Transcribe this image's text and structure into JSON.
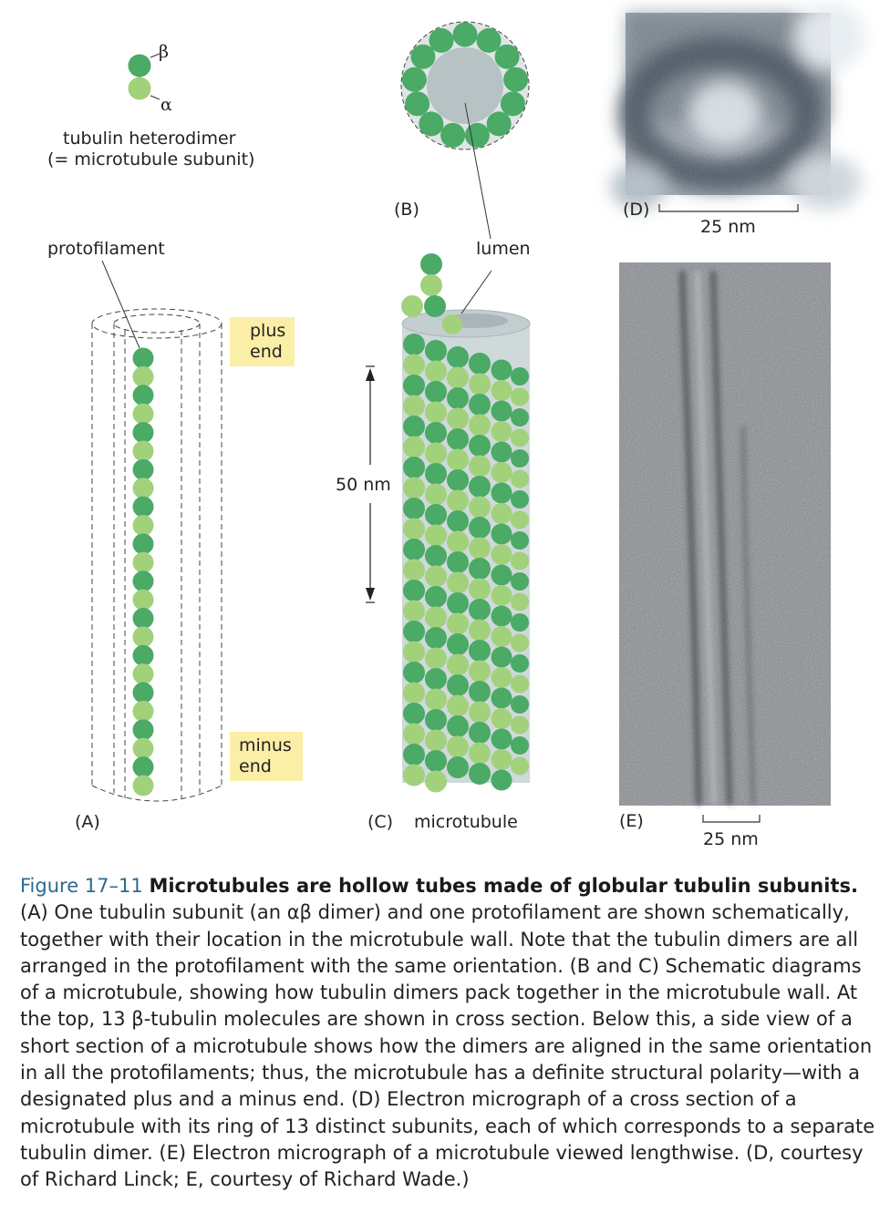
{
  "panel_a": {
    "beta_symbol": "β",
    "alpha_symbol": "α",
    "dimer_label_line1": "tubulin heterodimer",
    "dimer_label_line2": "(= microtubule subunit)",
    "protofilament_label": "protofilament",
    "plus_end_line1": "plus",
    "plus_end_line2": "end",
    "minus_end_line1": "minus",
    "minus_end_line2": "end",
    "panel_letter": "(A)"
  },
  "panel_b": {
    "panel_letter": "(B)"
  },
  "panel_c": {
    "lumen_label": "lumen",
    "length_label": "50 nm",
    "panel_letter": "(C)",
    "microtubule_label": "microtubule"
  },
  "panel_d": {
    "panel_letter": "(D)",
    "scale_label": "25 nm"
  },
  "panel_e": {
    "panel_letter": "(E)",
    "scale_label": "25 nm"
  },
  "colors": {
    "beta_tubulin": "#4aaa66",
    "alpha_tubulin": "#a2d17c",
    "lumen": "#b7c2c5",
    "tag_yellow": "#fbeea6",
    "caption_blue": "#2b6a8f"
  },
  "caption": {
    "figure_number": "Figure 17–11",
    "title": "Microtubules are hollow tubes made of globular tubulin subunits.",
    "body": "(A) One tubulin subunit (an αβ dimer) and one protofilament are shown schematically, together with their location in the microtubule wall. Note that the tubulin dimers are all arranged in the protofilament with the same orientation. (B and C) Schematic diagrams of a microtubule, showing how tubulin dimers pack together in the microtubule wall. At the top, 13 β-tubulin molecules are shown in cross section. Below this, a side view of a short section of a microtubule shows how the dimers are aligned in the same orientation in all the protofilaments; thus, the microtubule has a definite structural polarity—with a designated plus and a minus end. (D) Electron micrograph of a cross section of a microtubule with its ring of 13 distinct subunits, each of which corresponds to a separate tubulin dimer. (E) Electron micrograph of a microtubule viewed lengthwise. (D, courtesy of Richard Linck; E, courtesy of Richard Wade.)"
  }
}
